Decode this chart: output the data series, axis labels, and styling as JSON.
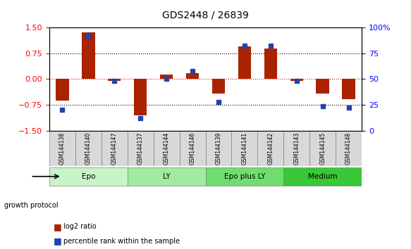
{
  "title": "GDS2448 / 26839",
  "samples": [
    "GSM144138",
    "GSM144140",
    "GSM144147",
    "GSM144137",
    "GSM144144",
    "GSM144146",
    "GSM144139",
    "GSM144141",
    "GSM144142",
    "GSM144143",
    "GSM144145",
    "GSM144148"
  ],
  "log2_ratio": [
    -0.62,
    1.35,
    -0.05,
    -1.05,
    0.12,
    0.18,
    -0.42,
    0.95,
    0.88,
    -0.05,
    -0.42,
    -0.58
  ],
  "percentile_rank": [
    20,
    92,
    48,
    12,
    50,
    58,
    28,
    82,
    82,
    48,
    24,
    22
  ],
  "groups": [
    {
      "label": "Epo",
      "start": 0,
      "end": 3,
      "color": "#c8f5c8"
    },
    {
      "label": "LY",
      "start": 3,
      "end": 6,
      "color": "#a0eba0"
    },
    {
      "label": "Epo plus LY",
      "start": 6,
      "end": 9,
      "color": "#70dd70"
    },
    {
      "label": "Medium",
      "start": 9,
      "end": 12,
      "color": "#38c838"
    }
  ],
  "bar_color": "#aa2200",
  "dot_color": "#2244aa",
  "ylim_left": [
    -1.5,
    1.5
  ],
  "ylim_right": [
    0,
    100
  ],
  "yticks_left": [
    -1.5,
    -0.75,
    0,
    0.75,
    1.5
  ],
  "yticks_right": [
    0,
    25,
    50,
    75,
    100
  ],
  "hline_black": [
    -0.75,
    0.75
  ],
  "hline_red": 0
}
